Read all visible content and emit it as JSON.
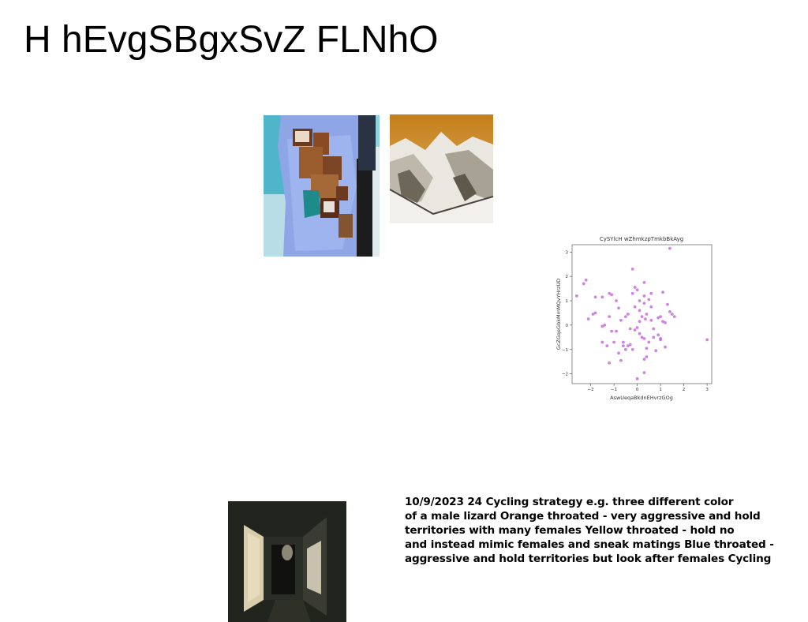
{
  "page": {
    "title": "H hEvgSBgxSvZ FLNhO"
  },
  "images": [
    {
      "name": "jacket-photo",
      "description_hidden": true
    },
    {
      "name": "mountain-photo",
      "description_hidden": true
    },
    {
      "name": "corridor-photo",
      "description_hidden": true
    }
  ],
  "note": {
    "text": "10/9/2023 24 Cycling strategy e.g. three different color\nof a male lizard Orange throated - very aggressive and hold\nterritories with many females Yellow throated - hold no\nand instead mimic females and sneak matings Blue throated -\naggressive and hold territories but look after females Cycling"
  },
  "chart_data": {
    "type": "scatter",
    "title": "CySYlcH wZhmkzpTmkbBkAyg",
    "xlabel": "AswUeqaBkdnEHvrzGOg",
    "ylabel": "GcZGqeGbkMmMQvYHrzUD",
    "xlim": [
      -2.8,
      3.2
    ],
    "ylim": [
      -2.4,
      3.3
    ],
    "xticks": [
      "−2",
      "−1",
      "0",
      "1",
      "2",
      "3"
    ],
    "yticks": [
      "−2",
      "−1",
      "0",
      "1",
      "2",
      "3"
    ],
    "color": "#c266d9",
    "points": [
      [
        -2.6,
        1.2
      ],
      [
        -2.3,
        1.7
      ],
      [
        -2.2,
        1.85
      ],
      [
        -2.1,
        0.25
      ],
      [
        -1.9,
        0.45
      ],
      [
        -1.8,
        0.5
      ],
      [
        -1.8,
        1.15
      ],
      [
        -1.5,
        1.15
      ],
      [
        -1.5,
        -0.05
      ],
      [
        -1.4,
        0.0
      ],
      [
        -1.5,
        -0.7
      ],
      [
        -1.3,
        -0.85
      ],
      [
        -1.2,
        -1.55
      ],
      [
        -1.2,
        0.35
      ],
      [
        -1.2,
        1.3
      ],
      [
        -1.1,
        1.25
      ],
      [
        -1.1,
        -0.25
      ],
      [
        -1.0,
        -0.7
      ],
      [
        -0.9,
        -0.25
      ],
      [
        -0.9,
        1.0
      ],
      [
        -0.8,
        0.7
      ],
      [
        -0.8,
        -1.15
      ],
      [
        -0.7,
        -1.45
      ],
      [
        -0.7,
        0.2
      ],
      [
        -0.6,
        -0.7
      ],
      [
        -0.6,
        -0.85
      ],
      [
        -0.5,
        0.35
      ],
      [
        -0.4,
        0.45
      ],
      [
        -0.5,
        -1.0
      ],
      [
        -0.3,
        -0.15
      ],
      [
        -0.4,
        -0.85
      ],
      [
        -0.2,
        2.3
      ],
      [
        -0.2,
        1.3
      ],
      [
        -0.3,
        -0.8
      ],
      [
        -0.2,
        -1.0
      ],
      [
        -0.1,
        0.75
      ],
      [
        -0.1,
        1.55
      ],
      [
        -0.1,
        -0.2
      ],
      [
        0.0,
        1.45
      ],
      [
        0.0,
        -0.1
      ],
      [
        0.0,
        -2.2
      ],
      [
        0.1,
        0.15
      ],
      [
        0.1,
        0.6
      ],
      [
        0.1,
        1.0
      ],
      [
        0.1,
        -0.35
      ],
      [
        0.2,
        0.35
      ],
      [
        0.2,
        -0.5
      ],
      [
        0.3,
        1.75
      ],
      [
        0.3,
        1.2
      ],
      [
        0.3,
        0.9
      ],
      [
        0.3,
        -0.55
      ],
      [
        0.3,
        -1.4
      ],
      [
        0.3,
        -1.95
      ],
      [
        0.35,
        0.25
      ],
      [
        0.4,
        -0.95
      ],
      [
        0.4,
        -1.3
      ],
      [
        0.4,
        0.45
      ],
      [
        0.5,
        1.05
      ],
      [
        0.5,
        -0.7
      ],
      [
        0.6,
        0.75
      ],
      [
        0.6,
        0.2
      ],
      [
        0.6,
        1.3
      ],
      [
        0.7,
        -0.5
      ],
      [
        0.7,
        -0.15
      ],
      [
        0.8,
        -1.05
      ],
      [
        0.9,
        -0.4
      ],
      [
        0.9,
        0.3
      ],
      [
        1.0,
        -0.6
      ],
      [
        1.0,
        -0.55
      ],
      [
        1.0,
        0.35
      ],
      [
        1.1,
        1.35
      ],
      [
        1.1,
        0.15
      ],
      [
        1.2,
        -0.9
      ],
      [
        1.2,
        0.1
      ],
      [
        1.3,
        0.85
      ],
      [
        1.4,
        0.55
      ],
      [
        1.5,
        0.45
      ],
      [
        1.6,
        0.35
      ],
      [
        1.4,
        3.15
      ],
      [
        3.0,
        -0.6
      ]
    ]
  }
}
